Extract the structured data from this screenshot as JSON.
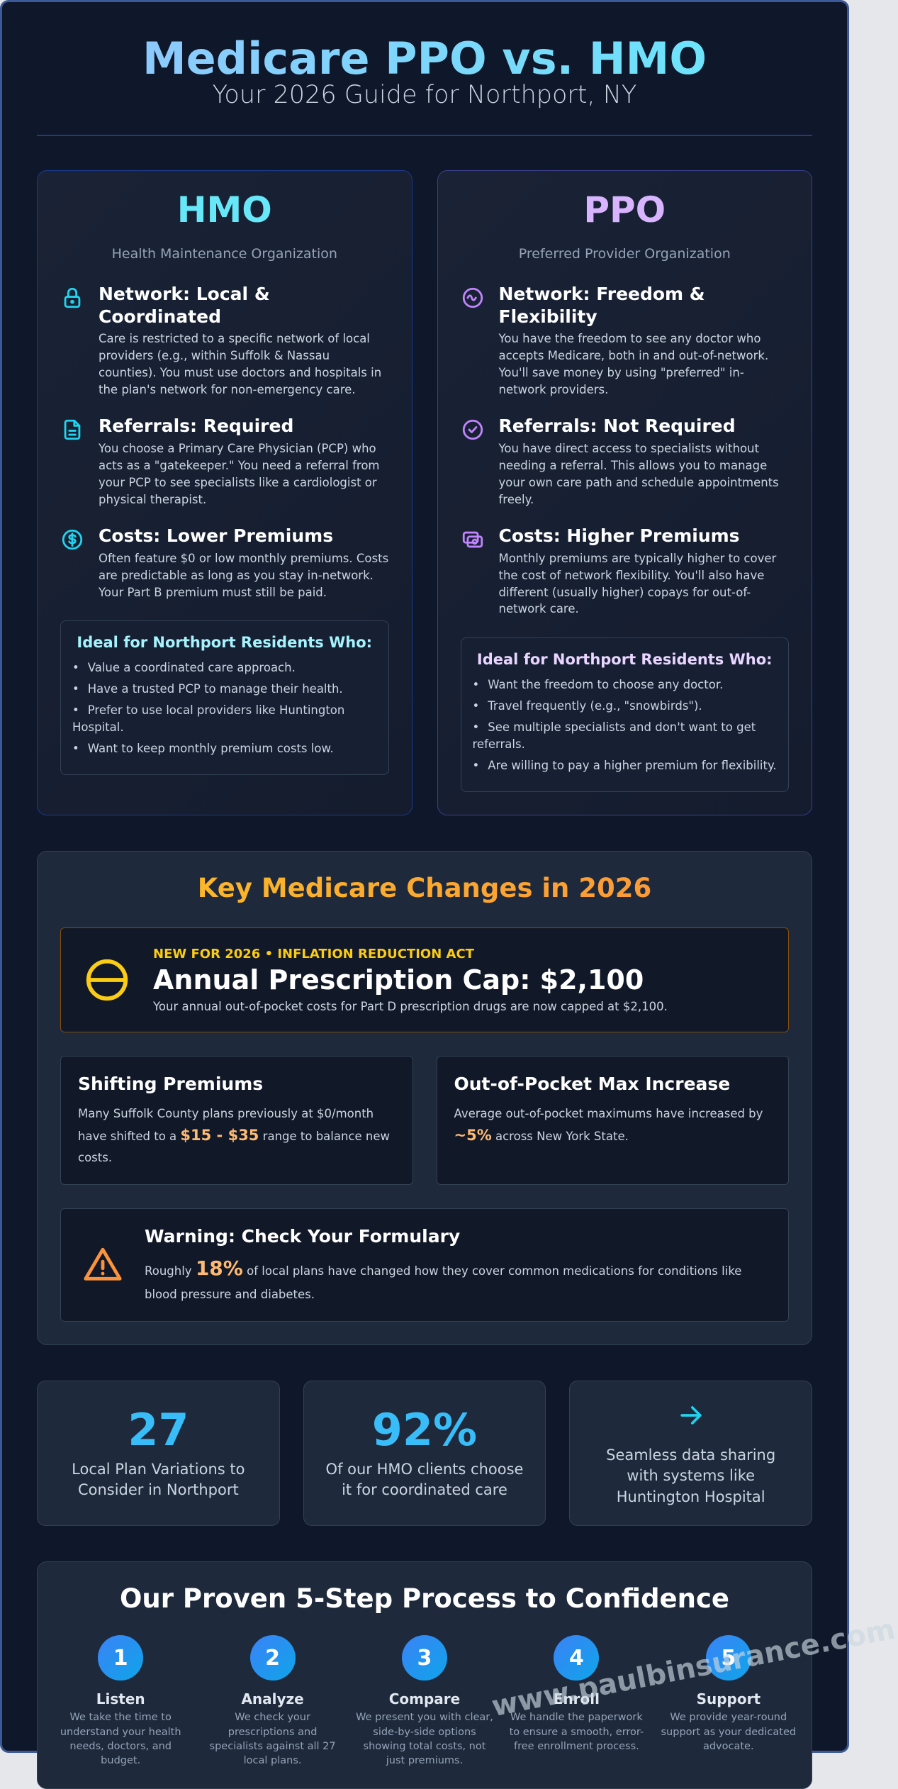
{
  "header": {
    "title": "Medicare PPO vs. HMO",
    "subtitle": "Your 2026 Guide for Northport, NY"
  },
  "plans": [
    {
      "name": "HMO",
      "full_name": "Health Maintenance Organization",
      "features": [
        {
          "title": "Network: Local & Coordinated",
          "text": "Care is restricted to a specific network of local providers (e.g., within Suffolk & Nassau counties). You must use doctors and hospitals in the plan's network for non-emergency care."
        },
        {
          "title": "Referrals: Required",
          "text": "You choose a Primary Care Physician (PCP) who acts as a \"gatekeeper.\" You need a referral from your PCP to see specialists like a cardiologist or physical therapist."
        },
        {
          "title": "Costs: Lower Premiums",
          "text": "Often feature $0 or low monthly premiums. Costs are predictable as long as you stay in-network. Your Part B premium must still be paid."
        }
      ],
      "ideal": {
        "title": "Ideal for Northport Residents Who:",
        "items": [
          "Value a coordinated care approach.",
          "Have a trusted PCP to manage their health.",
          "Prefer to use local providers like Huntington Hospital.",
          "Want to keep monthly premium costs low."
        ]
      }
    },
    {
      "name": "PPO",
      "full_name": "Preferred Provider Organization",
      "features": [
        {
          "title": "Network: Freedom & Flexibility",
          "text": "You have the freedom to see any doctor who accepts Medicare, both in and out-of-network. You'll save money by using \"preferred\" in-network providers."
        },
        {
          "title": "Referrals: Not Required",
          "text": "You have direct access to specialists without needing a referral. This allows you to manage your own care path and schedule appointments freely."
        },
        {
          "title": "Costs: Higher Premiums",
          "text": "Monthly premiums are typically higher to cover the cost of network flexibility. You'll also have different (usually higher) copays for out-of-network care."
        }
      ],
      "ideal": {
        "title": "Ideal for Northport Residents Who:",
        "items": [
          "Want the freedom to choose any doctor.",
          "Travel frequently (e.g., \"snowbirds\").",
          "See multiple specialists and don't want to get referrals.",
          "Are willing to pay a higher premium for flexibility."
        ]
      }
    }
  ],
  "changes": {
    "title": "Key Medicare Changes in 2026",
    "highlight": {
      "tag": "NEW FOR 2026 • INFLATION REDUCTION ACT",
      "title": "Annual Prescription Cap: $2,100",
      "text": "Your annual out-of-pocket costs for Part D prescription drugs are now capped at $2,100."
    },
    "cards": [
      {
        "title": "Shifting Premiums",
        "text_before": "Many Suffolk County plans previously at $0/month have shifted to a",
        "highlight": "$15 - $35",
        "text_after": "range to balance new costs."
      },
      {
        "title": "Out-of-Pocket Max Increase",
        "text_before": "Average out-of-pocket maximums have increased by",
        "highlight": "~5%",
        "text_after": "across New York State."
      }
    ],
    "warning": {
      "title": "Warning: Check Your Formulary",
      "text_before": "Roughly",
      "highlight": "18%",
      "text_after": "of local plans have changed how they cover common medications for conditions like blood pressure and diabetes."
    }
  },
  "stats": [
    {
      "value": "27",
      "label": "Local Plan Variations to Consider in Northport"
    },
    {
      "value": "92%",
      "label": "Of our HMO clients choose it for coordinated care"
    },
    {
      "label": "Seamless data sharing with systems like Huntington Hospital"
    }
  ],
  "process": {
    "title": "Our Proven 5-Step Process to Confidence",
    "steps": [
      {
        "number": "1",
        "title": "Listen",
        "text": "We take the time to understand your health needs, doctors, and budget."
      },
      {
        "number": "2",
        "title": "Analyze",
        "text": "We check your prescriptions and specialists against all 27 local plans."
      },
      {
        "number": "3",
        "title": "Compare",
        "text": "We present you with clear, side-by-side options showing total costs, not just premiums."
      },
      {
        "number": "4",
        "title": "Enroll",
        "text": "We handle the paperwork to ensure a smooth, error-free enrollment process."
      },
      {
        "number": "5",
        "title": "Support",
        "text": "We provide year-round support as your dedicated advocate."
      }
    ]
  },
  "watermark": "www.paulbinsurance.com"
}
